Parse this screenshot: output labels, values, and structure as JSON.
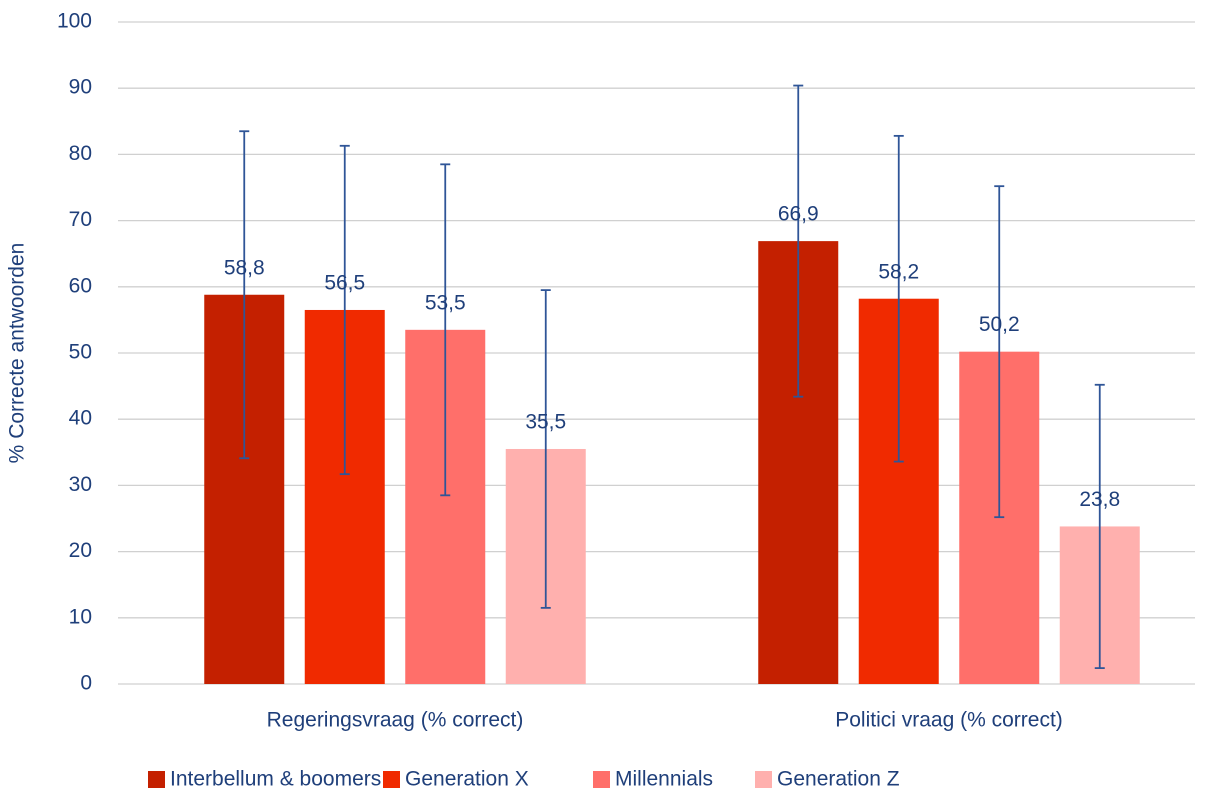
{
  "chart_data": {
    "type": "bar",
    "y_label": "% Correcte antwoorden",
    "categories": [
      "Regeringsvraag (% correct)",
      "Politici vraag (% correct)"
    ],
    "series": [
      {
        "name": "Interbellum & boomers",
        "color": "#c42000",
        "values": [
          58.8,
          66.9
        ],
        "value_labels": [
          "58,8",
          "66,9"
        ],
        "errors": [
          24.7,
          23.5
        ]
      },
      {
        "name": "Generation X",
        "color": "#f02a00",
        "values": [
          56.5,
          58.2
        ],
        "value_labels": [
          "56,5",
          "58,2"
        ],
        "errors": [
          24.8,
          24.6
        ]
      },
      {
        "name": "Millennials",
        "color": "#ff6f6a",
        "values": [
          53.5,
          50.2
        ],
        "value_labels": [
          "53,5",
          "50,2"
        ],
        "errors": [
          25,
          25
        ]
      },
      {
        "name": "Generation Z",
        "color": "#ffb0ae",
        "values": [
          35.5,
          23.8
        ],
        "value_labels": [
          "35,5",
          "23,8"
        ],
        "errors": [
          24,
          21.4
        ]
      }
    ],
    "error_color": "#2f5597",
    "ylim": [
      0,
      100
    ],
    "yticks": [
      0,
      10,
      20,
      30,
      40,
      50,
      60,
      70,
      80,
      90,
      100
    ],
    "grid": true,
    "legend": "bottom"
  }
}
